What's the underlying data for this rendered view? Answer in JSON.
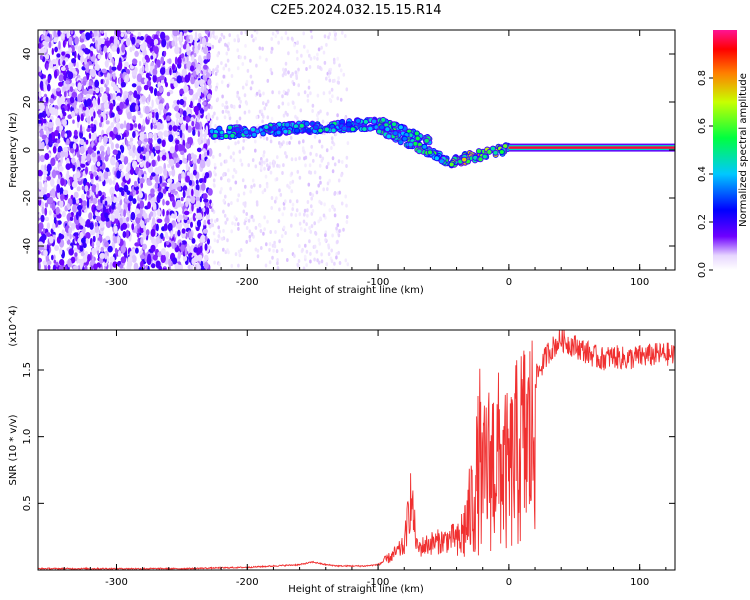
{
  "title": "C2E5.2024.032.15.15.R14",
  "chart_data": [
    {
      "type": "heatmap",
      "title": "C2E5.2024.032.15.15.R14",
      "xlabel": "Height of straight line (km)",
      "ylabel": "Frequency (Hz)",
      "xlim": [
        -360,
        127
      ],
      "ylim": [
        -50,
        50
      ],
      "xticks": [
        -300,
        -200,
        -100,
        0,
        100
      ],
      "yticks": [
        -40,
        -20,
        0,
        20,
        40
      ],
      "colorbar": {
        "label": "Normalized spectral amplitude",
        "range": [
          0,
          1
        ],
        "ticks": [
          0.0,
          0.2,
          0.4,
          0.6,
          0.8
        ],
        "tick_labels": [
          "0.0",
          "0.2",
          "0.4",
          "0.6",
          "0.8"
        ],
        "colormap": [
          "#ffffff",
          "#6e00ff",
          "#0000ff",
          "#00c8ff",
          "#00ff40",
          "#c8ff00",
          "#ff7f00",
          "#ff0000",
          "#ff1493"
        ]
      },
      "features": [
        {
          "region": "noise",
          "x": [
            -360,
            -228
          ],
          "freq": [
            -50,
            50
          ],
          "amplitude": 0.12
        },
        {
          "region": "faint-noise",
          "x": [
            -228,
            -123
          ],
          "freq": [
            -50,
            50
          ],
          "amplitude": 0.04
        },
        {
          "region": "signal-band",
          "x": [
            -228,
            -100
          ],
          "freq": [
            7,
            11
          ],
          "amplitude": 0.4
        },
        {
          "region": "branch-up",
          "x": [
            -100,
            -60
          ],
          "freq": [
            12,
            4
          ],
          "amplitude": 0.45
        },
        {
          "region": "branch-down",
          "x": [
            -100,
            -45
          ],
          "freq": [
            9,
            -5
          ],
          "amplitude": 0.45
        },
        {
          "region": "transition",
          "x": [
            -45,
            0
          ],
          "freq": [
            -5,
            1
          ],
          "amplitude": 0.6
        },
        {
          "region": "steady-tone",
          "x": [
            0,
            127
          ],
          "freq": [
            1,
            1
          ],
          "amplitude": 0.95
        }
      ]
    },
    {
      "type": "line",
      "xlabel": "Height of straight line (km)",
      "ylabel": "SNR (10 * v/v)",
      "y_multiplier": "(x10^4)",
      "xlim": [
        -360,
        127
      ],
      "ylim": [
        0,
        1.8
      ],
      "xticks": [
        -300,
        -200,
        -100,
        0,
        100
      ],
      "yticks": [
        0.5,
        1.0,
        1.5
      ],
      "ytick_labels": [
        "0.5",
        "1.0",
        "1.5"
      ],
      "color": "#f03030",
      "series": [
        {
          "x": [
            -360,
            -300,
            -250,
            -200,
            -180,
            -160,
            -150,
            -140,
            -130,
            -120,
            -110,
            -100,
            -90,
            -80,
            -75,
            -70,
            -60,
            -50,
            -40,
            -35,
            -30,
            -25,
            -22,
            -20,
            -18,
            -15,
            -10,
            -5,
            0,
            5,
            10,
            15,
            20,
            25,
            30,
            35,
            40,
            45,
            50,
            60,
            70,
            80,
            90,
            100,
            110,
            120,
            127
          ],
          "y": [
            0.01,
            0.01,
            0.01,
            0.02,
            0.03,
            0.04,
            0.06,
            0.04,
            0.03,
            0.03,
            0.03,
            0.04,
            0.1,
            0.18,
            0.55,
            0.16,
            0.2,
            0.22,
            0.25,
            0.4,
            0.6,
            0.9,
            1.2,
            0.8,
            1.1,
            1.1,
            1.2,
            1.1,
            1.0,
            1.2,
            1.35,
            1.4,
            1.45,
            1.55,
            1.65,
            1.7,
            1.75,
            1.72,
            1.7,
            1.65,
            1.6,
            1.62,
            1.6,
            1.62,
            1.63,
            1.64,
            1.62
          ]
        }
      ]
    }
  ]
}
